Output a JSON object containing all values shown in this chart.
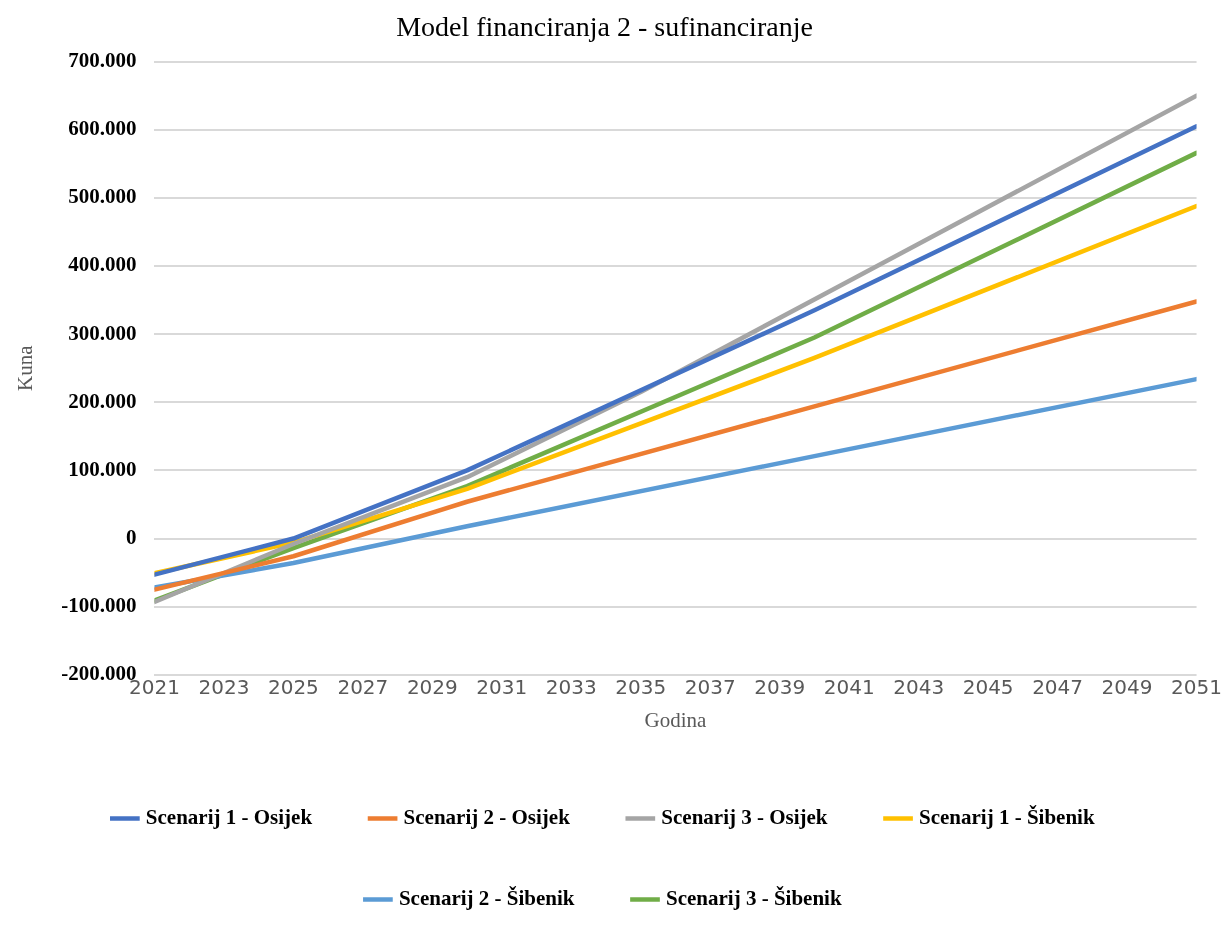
{
  "chart_data": {
    "type": "line",
    "title": "Model financiranja 2 - sufinanciranje",
    "xlabel": "Godina",
    "ylabel": "Kuna",
    "xlim": [
      2021,
      2051
    ],
    "xticks": [
      2021,
      2023,
      2025,
      2027,
      2029,
      2031,
      2033,
      2035,
      2037,
      2039,
      2041,
      2043,
      2045,
      2047,
      2049,
      2051
    ],
    "ylim": [
      -200000,
      700000
    ],
    "yticks": [
      {
        "value": -200000,
        "label": "-200.000"
      },
      {
        "value": -100000,
        "label": "-100.000"
      },
      0,
      {
        "value": 100000,
        "label": "100.000"
      },
      {
        "value": 200000,
        "label": "200.000"
      },
      {
        "value": 300000,
        "label": "300.000"
      },
      {
        "value": 400000,
        "label": "400.000"
      },
      {
        "value": 500000,
        "label": "500.000"
      },
      {
        "value": 600000,
        "label": "600.000"
      },
      {
        "value": 700000,
        "label": "700.000"
      }
    ],
    "grid": "y",
    "legend": "bottom",
    "marker": "none",
    "line_style": "solid",
    "series": [
      {
        "name": "Scenarij 1 - Osijek",
        "color": "#4472c4",
        "x": [
          2021,
          2025,
          2030,
          2040,
          2051
        ],
        "values": [
          -53000,
          0,
          100000,
          335000,
          605000
        ]
      },
      {
        "name": "Scenarij 2 - Osijek",
        "color": "#ed7d31",
        "x": [
          2021,
          2025,
          2030,
          2040,
          2051
        ],
        "values": [
          -75000,
          -26000,
          54000,
          194000,
          348000
        ]
      },
      {
        "name": "Scenarij 3 - Osijek",
        "color": "#a5a5a5",
        "x": [
          2021,
          2025,
          2030,
          2035,
          2051
        ],
        "values": [
          -93000,
          -8000,
          90000,
          215000,
          650000
        ]
      },
      {
        "name": "Scenarij 1 - Šibenik",
        "color": "#ffc000",
        "x": [
          2021,
          2025,
          2030,
          2040,
          2051
        ],
        "values": [
          -51000,
          -6000,
          73000,
          265000,
          488000
        ]
      },
      {
        "name": "Scenarij 2 - Šibenik",
        "color": "#5b9bd5",
        "x": [
          2021,
          2025,
          2030,
          2040,
          2051
        ],
        "values": [
          -72000,
          -36000,
          18000,
          121000,
          234000
        ]
      },
      {
        "name": "Scenarij 3 - Šibenik",
        "color": "#70ad47",
        "x": [
          2021,
          2025,
          2030,
          2040,
          2051
        ],
        "values": [
          -91000,
          -14000,
          77000,
          295000,
          566000
        ]
      }
    ]
  }
}
